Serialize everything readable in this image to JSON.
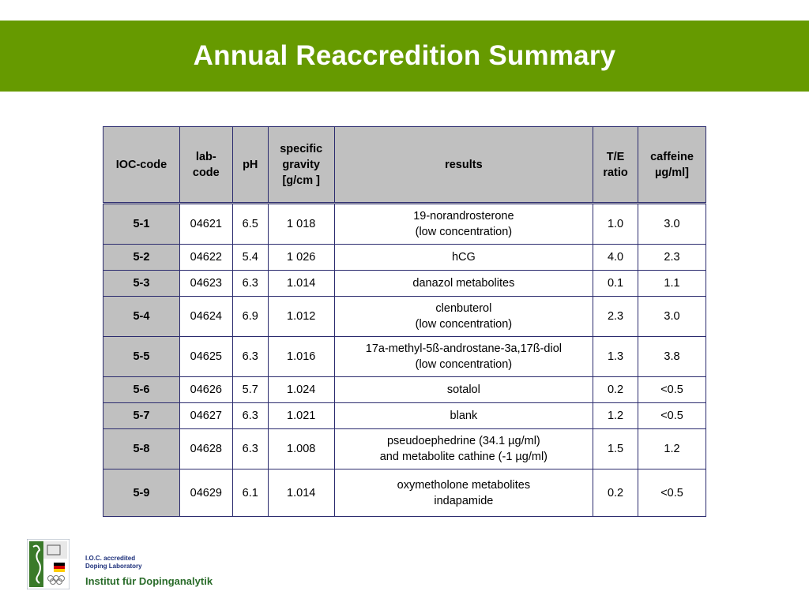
{
  "title": "Annual Reaccredition Summary",
  "table": {
    "headers": {
      "ioc": "IOC-code",
      "lab": [
        "lab-",
        "code"
      ],
      "ph": "pH",
      "gravity": [
        "specific",
        "gravity",
        "[g/cm ]"
      ],
      "results": "results",
      "te": [
        "T/E",
        "ratio"
      ],
      "caffeine": [
        "caffeine",
        "µg/ml]"
      ]
    },
    "rows": [
      {
        "ioc": "5-1",
        "lab": "04621",
        "ph": "6.5",
        "gravity": "1 018",
        "results": [
          "19-norandrosterone",
          "(low concentration)"
        ],
        "te": "1.0",
        "caffeine": "3.0"
      },
      {
        "ioc": "5-2",
        "lab": "04622",
        "ph": "5.4",
        "gravity": "1 026",
        "results": [
          "hCG",
          ""
        ],
        "te": "4.0",
        "caffeine": "2.3"
      },
      {
        "ioc": "5-3",
        "lab": "04623",
        "ph": "6.3",
        "gravity": "1.014",
        "results": [
          "danazol metabolites",
          ""
        ],
        "te": "0.1",
        "caffeine": "1.1"
      },
      {
        "ioc": "5-4",
        "lab": "04624",
        "ph": "6.9",
        "gravity": "1.012",
        "results": [
          "clenbuterol",
          "(low concentration)"
        ],
        "te": "2.3",
        "caffeine": "3.0"
      },
      {
        "ioc": "5-5",
        "lab": "04625",
        "ph": "6.3",
        "gravity": "1.016",
        "results": [
          "17a-methyl-5ß-androstane-3a,17ß-diol",
          "(low concentration)"
        ],
        "te": "1.3",
        "caffeine": "3.8"
      },
      {
        "ioc": "5-6",
        "lab": "04626",
        "ph": "5.7",
        "gravity": "1.024",
        "results": [
          "sotalol",
          ""
        ],
        "te": "0.2",
        "caffeine": "<0.5"
      },
      {
        "ioc": "5-7",
        "lab": "04627",
        "ph": "6.3",
        "gravity": "1.021",
        "results": [
          "blank",
          ""
        ],
        "te": "1.2",
        "caffeine": "<0.5"
      },
      {
        "ioc": "5-8",
        "lab": "04628",
        "ph": "6.3",
        "gravity": "1.008",
        "results": [
          "pseudoephedrine (34.1 µg/ml)",
          "and metabolite cathine (-1 µg/ml)"
        ],
        "te": "1.5",
        "caffeine": "1.2"
      },
      {
        "ioc": "5-9",
        "lab": "04629",
        "ph": "6.1",
        "gravity": "1.014",
        "results": [
          "oxymetholone metabolites",
          "indapamide"
        ],
        "te": "0.2",
        "caffeine": "<0.5"
      }
    ]
  },
  "footer": {
    "accredited": [
      "I.O.C. accredited",
      "Doping Laboratory"
    ],
    "institute": "Institut für Dopinganalytik",
    "colors": {
      "green": "#669a00",
      "navy": "#1c2f7a"
    }
  }
}
